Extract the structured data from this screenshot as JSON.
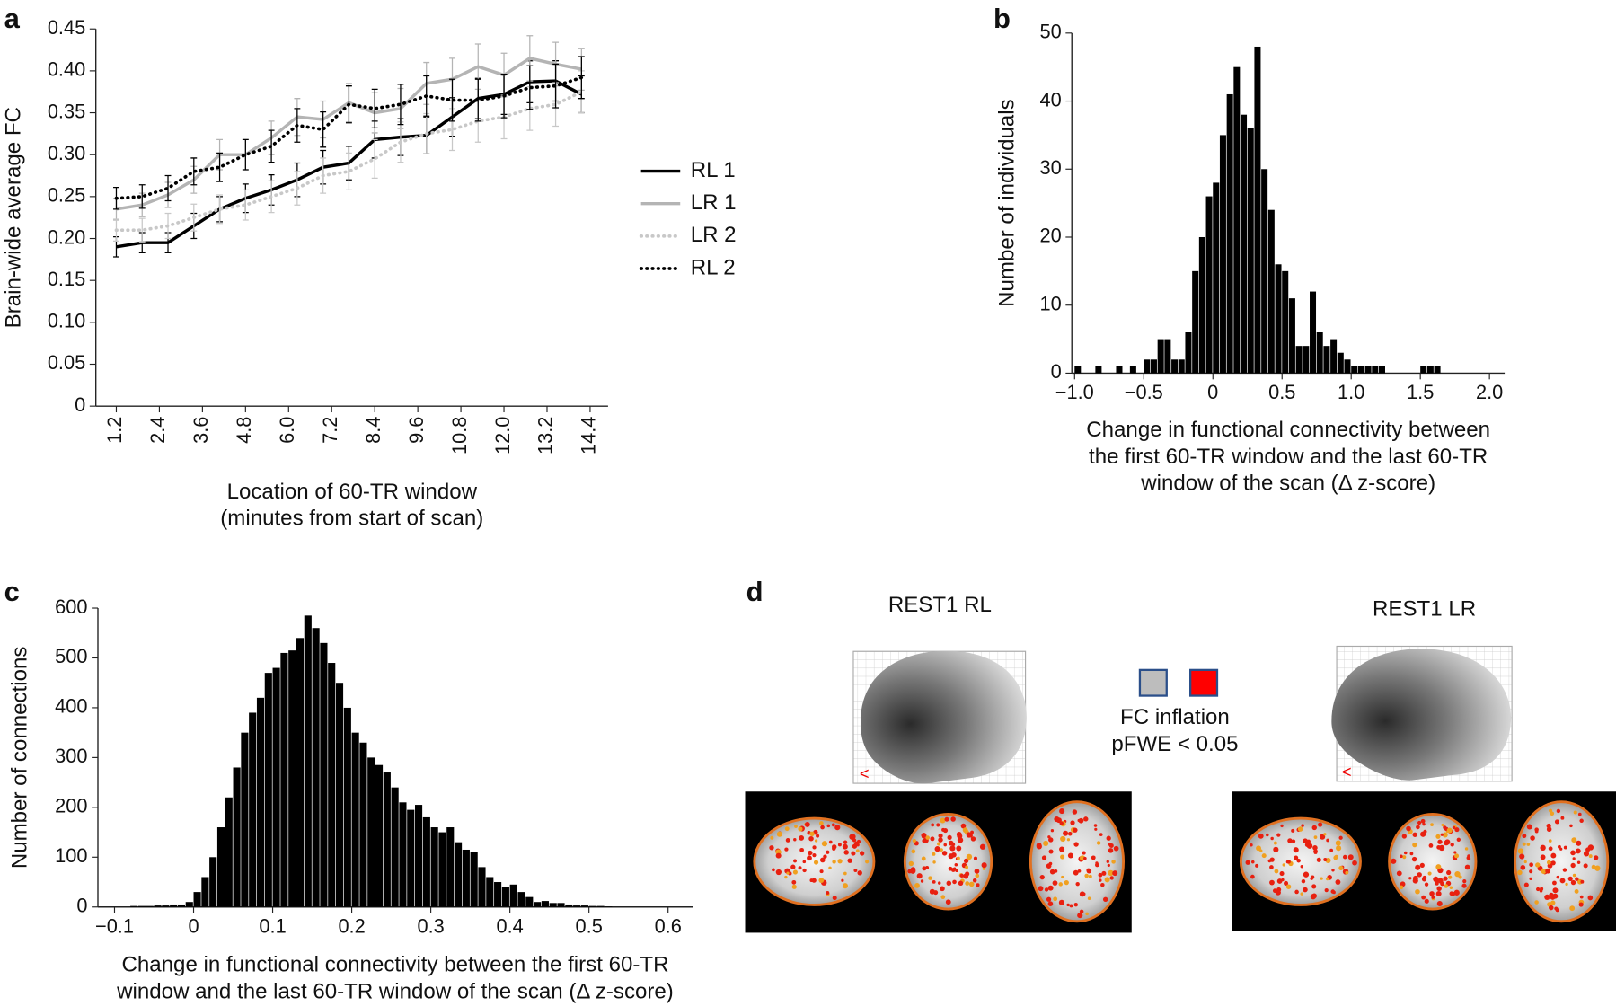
{
  "panel_labels": [
    "a",
    "b",
    "c",
    "d"
  ],
  "chart_data": [
    {
      "type": "line",
      "ylabel": "Brain-wide average FC",
      "xlabel": [
        "Location of 60-TR window",
        "(minutes from start of scan)"
      ],
      "x": [
        1.2,
        1.92,
        2.64,
        3.36,
        4.08,
        4.8,
        5.52,
        6.24,
        6.96,
        7.68,
        8.4,
        9.12,
        9.84,
        10.56,
        11.28,
        12.0,
        12.72,
        13.44,
        14.16
      ],
      "xlim": [
        0.63,
        14.9
      ],
      "xticks": [
        1.2,
        2.4,
        3.6,
        4.8,
        {
          "value": 6,
          "label": "6.0"
        },
        7.2,
        8.4,
        9.6,
        10.8,
        {
          "value": 12,
          "label": "12.0"
        },
        13.2,
        14.4
      ],
      "ylim": [
        0,
        0.45
      ],
      "yticks": [
        0,
        0.05,
        {
          "value": 0.1,
          "label": "0.10"
        },
        0.15,
        {
          "value": 0.2,
          "label": "0.20"
        },
        0.25,
        {
          "value": 0.3,
          "label": "0.30"
        },
        0.35,
        {
          "value": 0.4,
          "label": "0.40"
        },
        0.45
      ],
      "legend": "right",
      "series": [
        {
          "name": "RL 1",
          "color": "#000000",
          "style": "solid",
          "values": [
            0.19,
            0.195,
            0.195,
            0.215,
            0.235,
            0.248,
            0.258,
            0.27,
            0.285,
            0.29,
            0.318,
            0.321,
            0.323,
            0.345,
            0.367,
            0.372,
            0.387,
            0.388,
            0.372
          ],
          "errors": [
            0.012,
            0.012,
            0.012,
            0.015,
            0.015,
            0.017,
            0.018,
            0.02,
            0.02,
            0.02,
            0.022,
            0.022,
            0.022,
            0.023,
            0.024,
            0.024,
            0.025,
            0.024,
            0.022
          ]
        },
        {
          "name": "LR 1",
          "color": "#b4b4b4",
          "style": "solid",
          "values": [
            0.235,
            0.24,
            0.252,
            0.27,
            0.3,
            0.3,
            0.32,
            0.345,
            0.342,
            0.362,
            0.35,
            0.355,
            0.385,
            0.39,
            0.405,
            0.395,
            0.415,
            0.408,
            0.402
          ],
          "errors": [
            0.013,
            0.014,
            0.015,
            0.016,
            0.018,
            0.018,
            0.02,
            0.022,
            0.022,
            0.023,
            0.024,
            0.024,
            0.025,
            0.025,
            0.027,
            0.026,
            0.027,
            0.026,
            0.025
          ]
        },
        {
          "name": "LR 2",
          "color": "#c8c8c8",
          "style": "dotted",
          "values": [
            0.21,
            0.21,
            0.215,
            0.225,
            0.235,
            0.24,
            0.25,
            0.26,
            0.275,
            0.28,
            0.295,
            0.315,
            0.325,
            0.33,
            0.34,
            0.345,
            0.355,
            0.36,
            0.375
          ],
          "errors": [
            0.013,
            0.014,
            0.015,
            0.016,
            0.017,
            0.018,
            0.019,
            0.02,
            0.021,
            0.022,
            0.023,
            0.024,
            0.024,
            0.025,
            0.025,
            0.026,
            0.026,
            0.026,
            0.025
          ]
        },
        {
          "name": "RL 2",
          "color": "#000000",
          "style": "dotted",
          "values": [
            0.248,
            0.25,
            0.26,
            0.28,
            0.285,
            0.3,
            0.31,
            0.335,
            0.33,
            0.36,
            0.355,
            0.36,
            0.37,
            0.365,
            0.365,
            0.37,
            0.38,
            0.382,
            0.392
          ],
          "errors": [
            0.013,
            0.014,
            0.015,
            0.016,
            0.017,
            0.018,
            0.019,
            0.02,
            0.021,
            0.022,
            0.023,
            0.024,
            0.024,
            0.025,
            0.025,
            0.026,
            0.026,
            0.026,
            0.025
          ]
        }
      ]
    },
    {
      "type": "histogram",
      "ylabel": "Number of individuals",
      "xlabel": [
        "Change in functional connectivity between",
        "the first 60-TR window and the last 60-TR",
        "window of the scan (Δ z-score)"
      ],
      "color": "#000000",
      "bins": [
        -1.0,
        -0.95,
        -0.9,
        -0.85,
        -0.8,
        -0.75,
        -0.7,
        -0.65,
        -0.6,
        -0.55,
        -0.5,
        -0.45,
        -0.4,
        -0.35,
        -0.3,
        -0.25,
        -0.2,
        -0.15,
        -0.1,
        -0.05,
        0,
        0.05,
        0.1,
        0.15,
        0.2,
        0.25,
        0.3,
        0.35,
        0.4,
        0.45,
        0.5,
        0.55,
        0.6,
        0.65,
        0.7,
        0.75,
        0.8,
        0.85,
        0.9,
        0.95,
        1.0,
        1.05,
        1.1,
        1.15,
        1.2,
        1.25,
        1.3,
        1.35,
        1.4,
        1.45,
        1.5,
        1.55,
        1.6,
        1.65,
        1.7
      ],
      "values": [
        1,
        0,
        0,
        1,
        0,
        0,
        1,
        0,
        1,
        0,
        2,
        2,
        5,
        5,
        2,
        2,
        6,
        15,
        20,
        26,
        28,
        35,
        41,
        45,
        38,
        36,
        48,
        30,
        24,
        16,
        15,
        11,
        4,
        4,
        12,
        6,
        4,
        5,
        3,
        2,
        1,
        1,
        1,
        1,
        1,
        0,
        0,
        0,
        0,
        0,
        1,
        1,
        1,
        0
      ],
      "xlim": [
        -1.02,
        2.11
      ],
      "xticks": [
        {
          "value": -1,
          "label": "−1.0"
        },
        {
          "value": -0.5,
          "label": "−0.5"
        },
        0,
        0.5,
        {
          "value": 1,
          "label": "1.0"
        },
        1.5,
        {
          "value": 2,
          "label": "2.0"
        }
      ],
      "ylim": [
        0,
        50
      ],
      "yticks": [
        0,
        10,
        20,
        30,
        40,
        50
      ]
    },
    {
      "type": "histogram",
      "ylabel": "Number of connections",
      "xlabel": [
        "Change in functional connectivity between the first 60-TR",
        "window and the last 60-TR window of the scan (Δ z-score)"
      ],
      "color": "#000000",
      "bins": [
        -0.08,
        -0.07,
        -0.06,
        -0.05,
        -0.04,
        -0.03,
        -0.02,
        -0.01,
        0,
        0.01,
        0.02,
        0.03,
        0.04,
        0.05,
        0.06,
        0.07,
        0.08,
        0.09,
        0.1,
        0.11,
        0.12,
        0.13,
        0.14,
        0.15,
        0.16,
        0.17,
        0.18,
        0.19,
        0.2,
        0.21,
        0.22,
        0.23,
        0.24,
        0.25,
        0.26,
        0.27,
        0.28,
        0.29,
        0.3,
        0.31,
        0.32,
        0.33,
        0.34,
        0.35,
        0.36,
        0.37,
        0.38,
        0.39,
        0.4,
        0.41,
        0.42,
        0.43,
        0.44,
        0.45,
        0.46,
        0.47,
        0.48,
        0.49,
        0.5,
        0.51,
        0.52,
        0.53
      ],
      "values": [
        2,
        2,
        2,
        3,
        3,
        5,
        5,
        10,
        30,
        60,
        100,
        160,
        220,
        280,
        350,
        390,
        420,
        470,
        480,
        510,
        515,
        540,
        585,
        560,
        530,
        490,
        450,
        400,
        350,
        330,
        300,
        285,
        270,
        240,
        210,
        195,
        205,
        180,
        160,
        150,
        160,
        130,
        115,
        110,
        80,
        60,
        50,
        40,
        45,
        30,
        20,
        10,
        12,
        8,
        8,
        5,
        3,
        3,
        2,
        2,
        1
      ],
      "xlim": [
        -0.121,
        0.631
      ],
      "xticks": [
        {
          "value": -0.1,
          "label": "−0.1"
        },
        0,
        0.1,
        0.2,
        0.3,
        0.4,
        0.5,
        0.6
      ],
      "ylim": [
        0,
        600
      ],
      "yticks": [
        0,
        100,
        200,
        300,
        400,
        500,
        600
      ]
    }
  ],
  "panel_d": {
    "titles": [
      "REST1 RL",
      "REST1 LR"
    ],
    "legend": [
      "FC inflation",
      "pFWE < 0.05"
    ]
  }
}
